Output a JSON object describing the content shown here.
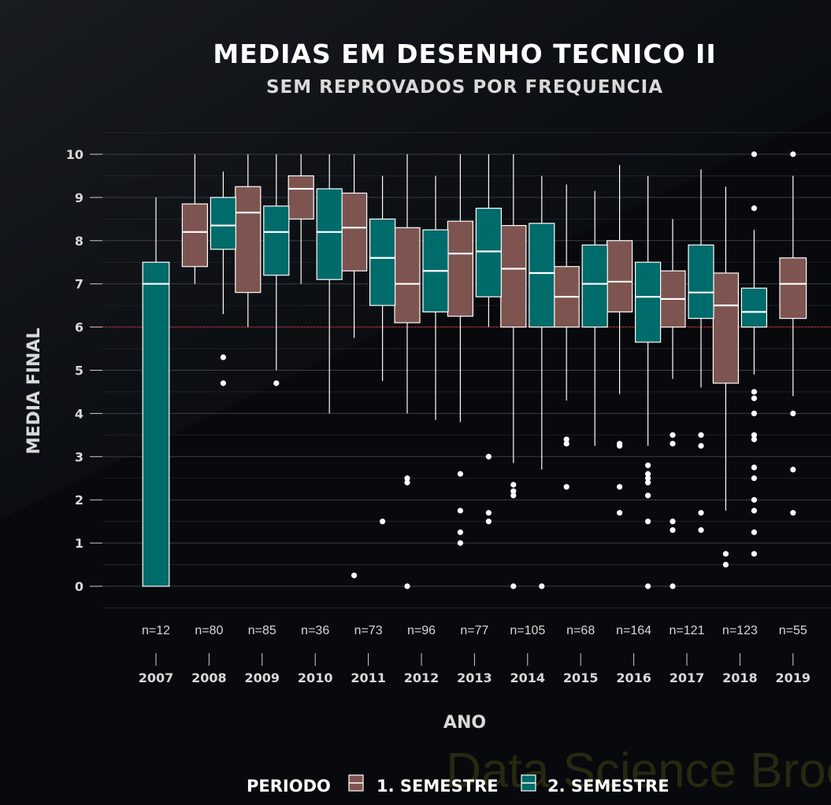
{
  "chart_data": {
    "type": "box",
    "title": "MEDIAS EM DESENHO TECNICO II",
    "subtitle": "SEM REPROVADOS POR FREQUENCIA",
    "xlabel": "ANO",
    "ylabel": "MEDIA FINAL",
    "ylim": [
      -0.5,
      10.5
    ],
    "yticks": [
      0,
      1,
      2,
      3,
      4,
      5,
      6,
      7,
      8,
      9,
      10
    ],
    "categories": [
      "2007",
      "2008",
      "2009",
      "2010",
      "2011",
      "2012",
      "2013",
      "2014",
      "2015",
      "2016",
      "2017",
      "2018",
      "2019"
    ],
    "counts": [
      "n=12",
      "n=80",
      "n=85",
      "n=36",
      "n=73",
      "n=96",
      "n=77",
      "n=105",
      "n=68",
      "n=164",
      "n=121",
      "n=123",
      "n=55"
    ],
    "reference_line": 6,
    "legend": {
      "title": "PERIODO",
      "position": "bottom",
      "entries": [
        "1. SEMESTRE",
        "2. SEMESTRE"
      ]
    },
    "watermark": "Data Science Broon",
    "colors": {
      "background": "#07090c",
      "sem1": "#7e5450",
      "sem2": "#006b6b",
      "reference": "#b01818",
      "grid": "#2b3036",
      "text": "#d8d8d8"
    },
    "series": [
      {
        "name": "1. SEMESTRE",
        "boxes": [
          {
            "x": "2008",
            "whislo": 7.0,
            "q1": 7.4,
            "med": 8.2,
            "q3": 8.85,
            "whishi": 10.0,
            "fliers": []
          },
          {
            "x": "2009",
            "whislo": 6.0,
            "q1": 6.8,
            "med": 8.65,
            "q3": 9.25,
            "whishi": 10.0,
            "fliers": []
          },
          {
            "x": "2010",
            "whislo": 7.0,
            "q1": 8.5,
            "med": 9.2,
            "q3": 9.5,
            "whishi": 10.0,
            "fliers": []
          },
          {
            "x": "2011",
            "whislo": 5.75,
            "q1": 7.3,
            "med": 8.3,
            "q3": 9.1,
            "whishi": 10.0,
            "fliers": [
              0.25
            ]
          },
          {
            "x": "2012",
            "whislo": 4.0,
            "q1": 6.1,
            "med": 7.0,
            "q3": 8.3,
            "whishi": 10.0,
            "fliers": [
              0,
              2.4,
              2.5
            ]
          },
          {
            "x": "2013",
            "whislo": 3.8,
            "q1": 6.25,
            "med": 7.7,
            "q3": 8.45,
            "whishi": 10.0,
            "fliers": [
              1.0,
              1.25,
              1.75,
              2.6
            ]
          },
          {
            "x": "2014",
            "whislo": 2.85,
            "q1": 6.0,
            "med": 7.35,
            "q3": 8.35,
            "whishi": 10.0,
            "fliers": [
              0,
              2.1,
              2.2,
              2.35
            ]
          },
          {
            "x": "2015",
            "whislo": 4.3,
            "q1": 6.0,
            "med": 6.7,
            "q3": 7.4,
            "whishi": 9.3,
            "fliers": [
              2.3,
              3.3,
              3.4
            ]
          },
          {
            "x": "2016",
            "whislo": 4.45,
            "q1": 6.35,
            "med": 7.05,
            "q3": 8.0,
            "whishi": 9.75,
            "fliers": [
              1.7,
              2.3,
              3.25,
              3.3
            ]
          },
          {
            "x": "2017",
            "whislo": 4.8,
            "q1": 6.0,
            "med": 6.65,
            "q3": 7.3,
            "whishi": 8.5,
            "fliers": [
              0,
              1.3,
              1.5,
              3.3,
              3.5
            ]
          },
          {
            "x": "2018",
            "whislo": 1.75,
            "q1": 4.7,
            "med": 6.5,
            "q3": 7.25,
            "whishi": 9.25,
            "fliers": [
              0.5,
              0.75
            ]
          },
          {
            "x": "2019",
            "whislo": 4.4,
            "q1": 6.2,
            "med": 7.0,
            "q3": 7.6,
            "whishi": 9.5,
            "fliers": [
              1.7,
              2.7,
              4.0,
              10.0
            ]
          }
        ]
      },
      {
        "name": "2. SEMESTRE",
        "boxes": [
          {
            "x": "2007",
            "whislo": 0.0,
            "q1": 0.0,
            "med": 7.0,
            "q3": 7.5,
            "whishi": 9.0,
            "fliers": []
          },
          {
            "x": "2008",
            "whislo": 6.3,
            "q1": 7.8,
            "med": 8.35,
            "q3": 9.0,
            "whishi": 9.6,
            "fliers": [
              4.7,
              5.3
            ]
          },
          {
            "x": "2009",
            "whislo": 5.0,
            "q1": 7.2,
            "med": 8.2,
            "q3": 8.8,
            "whishi": 10.0,
            "fliers": [
              4.7
            ]
          },
          {
            "x": "2010",
            "whislo": 4.0,
            "q1": 7.1,
            "med": 8.2,
            "q3": 9.2,
            "whishi": 10.0,
            "fliers": []
          },
          {
            "x": "2011",
            "whislo": 4.75,
            "q1": 6.5,
            "med": 7.6,
            "q3": 8.5,
            "whishi": 9.5,
            "fliers": [
              1.5
            ]
          },
          {
            "x": "2012",
            "whislo": 3.85,
            "q1": 6.35,
            "med": 7.3,
            "q3": 8.25,
            "whishi": 9.5,
            "fliers": []
          },
          {
            "x": "2013",
            "whislo": 6.0,
            "q1": 6.7,
            "med": 7.75,
            "q3": 8.75,
            "whishi": 10.0,
            "fliers": [
              1.5,
              1.7,
              3.0
            ]
          },
          {
            "x": "2014",
            "whislo": 2.7,
            "q1": 6.0,
            "med": 7.25,
            "q3": 8.4,
            "whishi": 9.5,
            "fliers": [
              0
            ]
          },
          {
            "x": "2015",
            "whislo": 3.25,
            "q1": 6.0,
            "med": 7.0,
            "q3": 7.9,
            "whishi": 9.15,
            "fliers": []
          },
          {
            "x": "2016",
            "whislo": 3.25,
            "q1": 5.65,
            "med": 6.7,
            "q3": 7.5,
            "whishi": 9.5,
            "fliers": [
              0,
              1.5,
              2.1,
              2.4,
              2.5,
              2.6,
              2.8
            ]
          },
          {
            "x": "2017",
            "whislo": 4.6,
            "q1": 6.2,
            "med": 6.8,
            "q3": 7.9,
            "whishi": 9.65,
            "fliers": [
              1.3,
              1.7,
              3.25,
              3.5
            ]
          },
          {
            "x": "2018",
            "whislo": 4.9,
            "q1": 6.0,
            "med": 6.35,
            "q3": 6.9,
            "whishi": 8.25,
            "fliers": [
              0.75,
              1.25,
              1.75,
              2.0,
              2.5,
              2.75,
              3.4,
              3.5,
              4.0,
              4.35,
              4.5,
              8.75,
              10.0
            ]
          }
        ]
      }
    ]
  }
}
